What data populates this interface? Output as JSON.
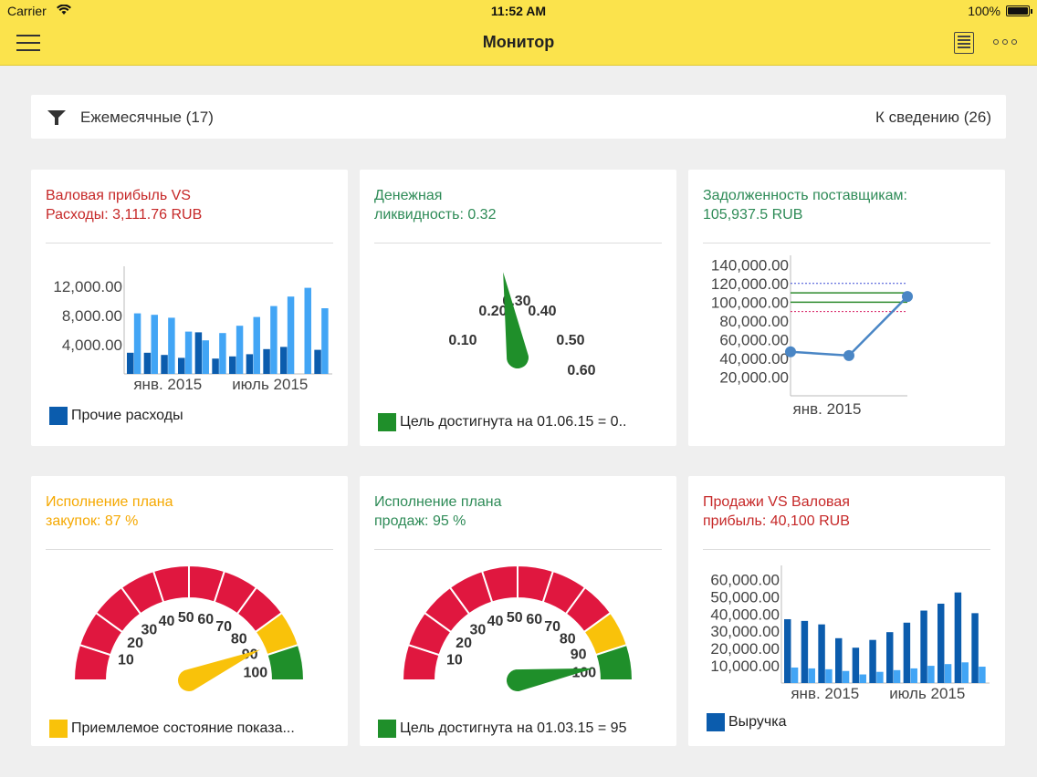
{
  "status_bar": {
    "carrier": "Carrier",
    "time": "11:52 AM",
    "battery": "100%"
  },
  "header": {
    "title": "Монитор",
    "menu_icon": "hamburger-icon",
    "list_icon": "list-icon",
    "more_icon": "more-icon"
  },
  "filter": {
    "label": "Ежемесячные (17)",
    "notice": "К сведению (26)",
    "icon": "filter-icon"
  },
  "colors": {
    "red": "#c62828",
    "green": "#2e8b57",
    "orange": "#f5a800",
    "dark_blue": "#0b5cad",
    "light_blue": "#42a5f5",
    "gauge_red": "#e0173f",
    "gauge_yellow": "#f9c20a",
    "gauge_green": "#1f8f2a"
  },
  "cards": [
    {
      "title_line1": "Валовая прибыль VS",
      "title_line2": "Расходы: 3,111.76 RUB",
      "title_color": "#c62828",
      "legend": "Прочие расходы",
      "legend_color": "#0b5cad",
      "chart_data": {
        "type": "bar",
        "y_tick_labels": [
          "12,000.00",
          "8,000.00",
          "4,000.00"
        ],
        "y_ticks": [
          12000,
          8000,
          4000
        ],
        "ylim": [
          0,
          14000
        ],
        "x_tick_labels": [
          "янв. 2015",
          "июль 2015"
        ],
        "x_tick_index": [
          2,
          8
        ],
        "series": [
          {
            "name": "Прочие расходы",
            "color": "#0b5cad",
            "values": [
              2900,
              2900,
              2600,
              2200,
              5700,
              2100,
              2400,
              2700,
              3400,
              3700,
              0,
              3300
            ]
          },
          {
            "color": "#42a5f5",
            "values": [
              8300,
              8100,
              7700,
              5800,
              4600,
              5600,
              6600,
              7800,
              9300,
              10600,
              11800,
              9000
            ]
          }
        ]
      }
    },
    {
      "title_line1": "Денежная",
      "title_line2": "ликвидность: 0.32",
      "title_color": "#2e8b57",
      "legend": "Цель достигнута на 01.06.15 = 0..",
      "legend_color": "#1f8f2a",
      "chart_data": {
        "type": "gauge",
        "value": 0.32,
        "tick_labels": [
          "0.10",
          "0.20",
          "0.30",
          "0.40",
          "0.50",
          "0.60"
        ],
        "ticks": [
          0.1,
          0.2,
          0.3,
          0.4,
          0.5,
          0.6
        ]
      }
    },
    {
      "title_line1": "Задолженность поставщикам:",
      "title_line2": "105,937.5 RUB",
      "title_color": "#2e8b57",
      "chart_data": {
        "type": "line",
        "y_tick_labels": [
          "140,000.00",
          "120,000.00",
          "100,000.00",
          "80,000.00",
          "60,000.00",
          "40,000.00",
          "20,000.00"
        ],
        "y_ticks": [
          140000,
          120000,
          100000,
          80000,
          60000,
          40000,
          20000
        ],
        "ylim": [
          0,
          150000
        ],
        "x_tick_labels": [
          "янв. 2015"
        ],
        "points": [
          47000,
          43000,
          106000
        ],
        "ref_lines": [
          {
            "value": 120000,
            "color": "#3b4dd6",
            "style": "dotted"
          },
          {
            "value": 110000,
            "color": "#2e8b2e",
            "style": "solid"
          },
          {
            "value": 100000,
            "color": "#2e8b2e",
            "style": "solid"
          },
          {
            "value": 90000,
            "color": "#d81b60",
            "style": "dotted"
          }
        ]
      }
    },
    {
      "title_line1": "Исполнение плана",
      "title_line2": "закупок: 87 %",
      "title_color": "#f5a800",
      "legend": "Приемлемое состояние показа...",
      "legend_color": "#f9c20a",
      "chart_data": {
        "type": "gauge",
        "value": 87,
        "needle_color": "#f9c20a",
        "tick_labels": [
          "10",
          "20",
          "30",
          "40",
          "50",
          "60",
          "70",
          "80",
          "90",
          "100"
        ],
        "ticks": [
          10,
          20,
          30,
          40,
          50,
          60,
          70,
          80,
          90,
          100
        ],
        "segments": [
          "red",
          "red",
          "red",
          "red",
          "red",
          "red",
          "red",
          "red",
          "yellow",
          "green"
        ]
      }
    },
    {
      "title_line1": "Исполнение плана",
      "title_line2": "продаж: 95 %",
      "title_color": "#2e8b57",
      "legend": "Цель достигнута на 01.03.15 = 95",
      "legend_color": "#1f8f2a",
      "chart_data": {
        "type": "gauge",
        "value": 95,
        "needle_color": "#1f8f2a",
        "tick_labels": [
          "10",
          "20",
          "30",
          "40",
          "50",
          "60",
          "70",
          "80",
          "90",
          "100"
        ],
        "ticks": [
          10,
          20,
          30,
          40,
          50,
          60,
          70,
          80,
          90,
          100
        ],
        "segments": [
          "red",
          "red",
          "red",
          "red",
          "red",
          "red",
          "red",
          "red",
          "yellow",
          "green"
        ]
      }
    },
    {
      "title_line1": "Продажи VS Валовая",
      "title_line2": "прибыль: 40,100 RUB",
      "title_color": "#c62828",
      "legend": "Выручка",
      "legend_color": "#0b5cad",
      "chart_data": {
        "type": "bar",
        "y_tick_labels": [
          "60,000.00",
          "50,000.00",
          "40,000.00",
          "30,000.00",
          "20,000.00",
          "10,000.00"
        ],
        "y_ticks": [
          60000,
          50000,
          40000,
          30000,
          20000,
          10000
        ],
        "ylim": [
          0,
          65000
        ],
        "x_tick_labels": [
          "янв. 2015",
          "июль 2015"
        ],
        "x_tick_index": [
          2,
          8
        ],
        "series": [
          {
            "name": "Выручка",
            "color": "#0b5cad",
            "values": [
              37000,
              36000,
              34000,
              26000,
              20500,
              25000,
              29500,
              35000,
              42000,
              46000,
              52500,
              40500
            ]
          },
          {
            "color": "#42a5f5",
            "values": [
              9000,
              8500,
              8000,
              7000,
              5000,
              6500,
              7500,
              8500,
              10000,
              11000,
              12000,
              9500
            ]
          }
        ]
      }
    }
  ]
}
